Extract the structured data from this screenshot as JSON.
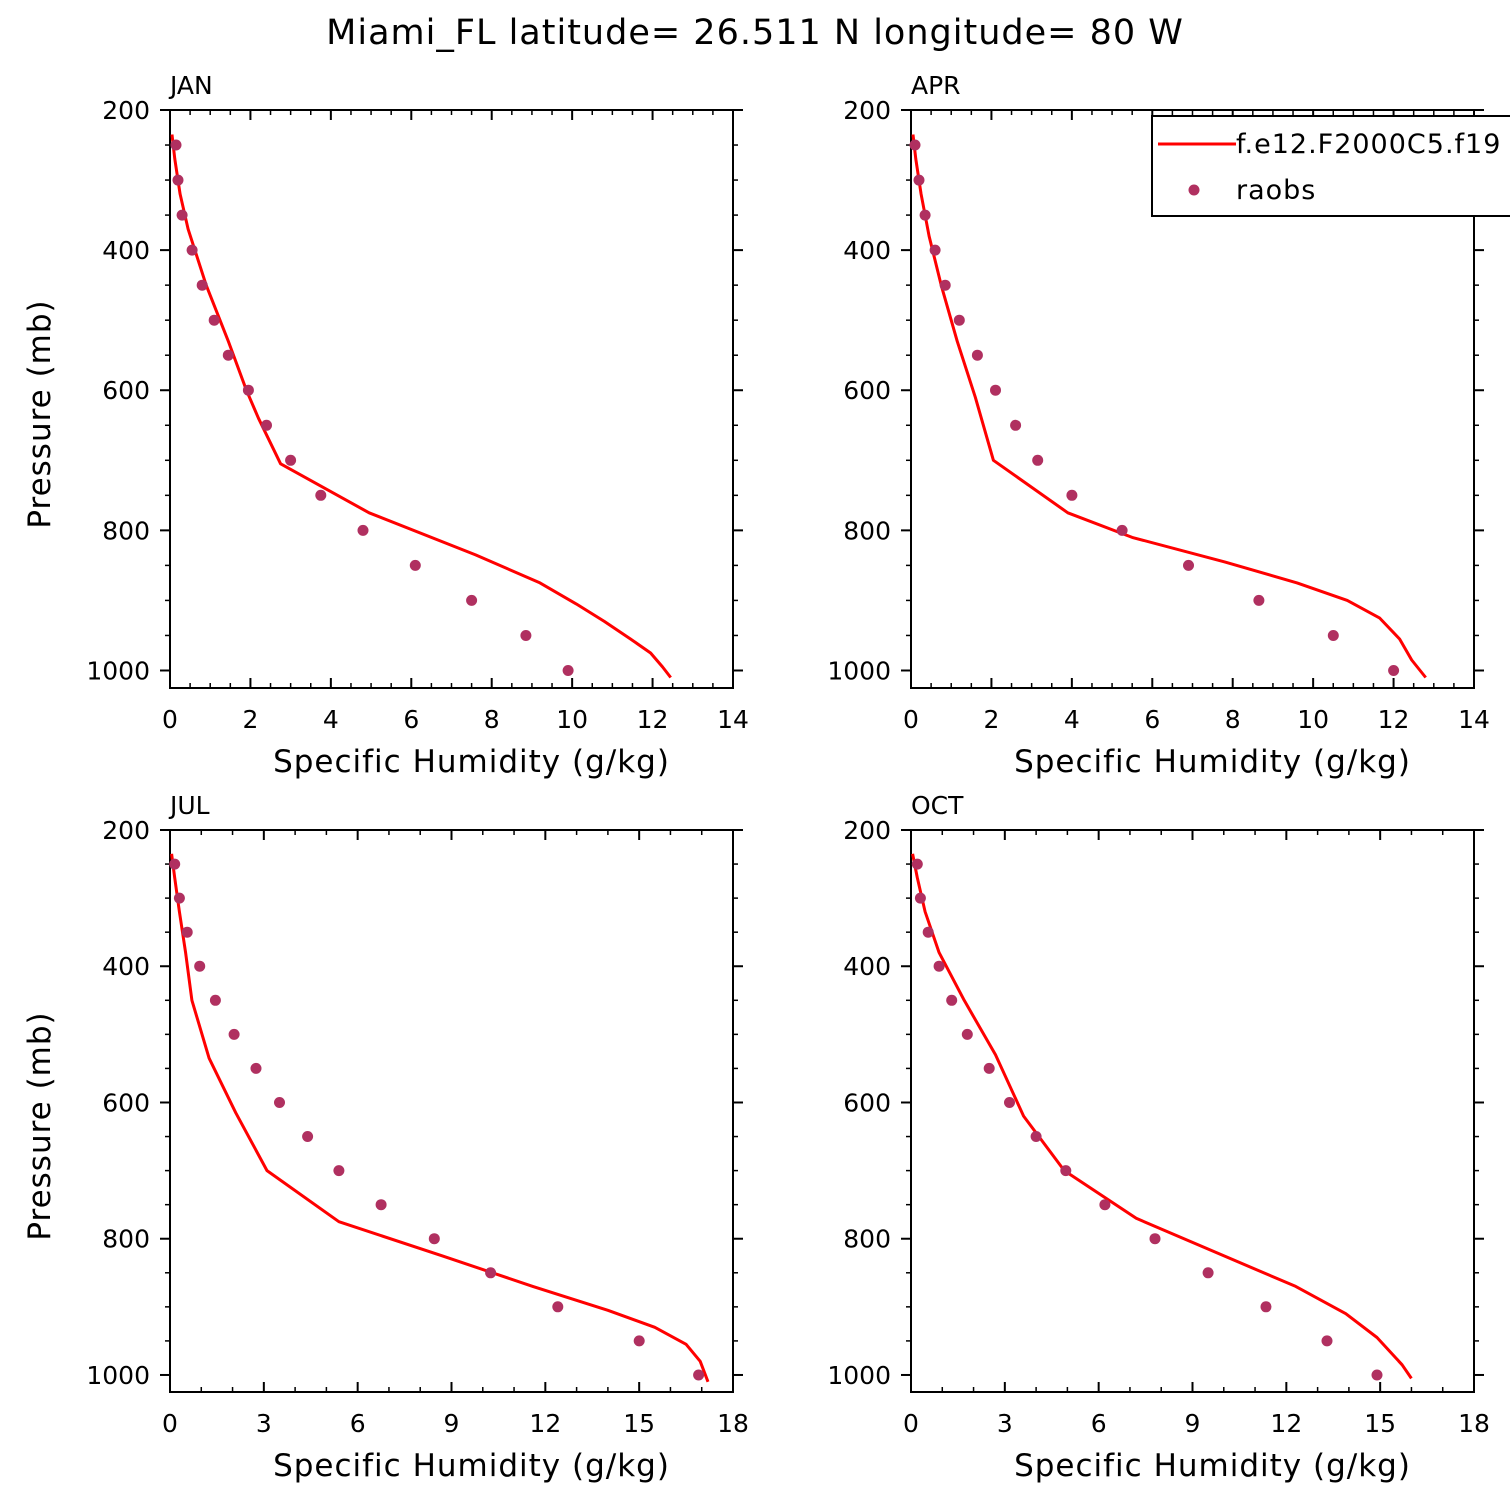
{
  "page_title": "Miami_FL  latitude= 26.511 N longitude= 80 W",
  "legend": {
    "model_label": "f.e12.F2000C5.f19",
    "obs_label": "raobs"
  },
  "colors": {
    "model_line": "#ff0000",
    "obs_points": "#b03060",
    "axes": "#000000",
    "background": "#ffffff"
  },
  "chart_data": [
    {
      "type": "line",
      "panel": "JAN",
      "title": "JAN",
      "xlabel": "Specific Humidity (g/kg)",
      "ylabel": "Pressure (mb)",
      "xlim": [
        0,
        14
      ],
      "ylim": [
        200,
        1025
      ],
      "y_inverted": true,
      "x_ticks": [
        0,
        2,
        4,
        6,
        8,
        10,
        12,
        14
      ],
      "y_ticks": [
        200,
        400,
        600,
        800,
        1000
      ],
      "series": [
        {
          "name": "f.e12.F2000C5.f19",
          "style": "line",
          "x": [
            0.05,
            0.12,
            0.25,
            0.45,
            0.9,
            1.45,
            1.9,
            2.2,
            2.75,
            4.95,
            7.6,
            9.2,
            10.1,
            10.8,
            11.45,
            11.95,
            12.25,
            12.45
          ],
          "y": [
            235,
            270,
            320,
            370,
            450,
            530,
            600,
            640,
            705,
            775,
            835,
            875,
            905,
            930,
            955,
            975,
            995,
            1010
          ]
        },
        {
          "name": "raobs",
          "style": "scatter",
          "x": [
            0.15,
            0.2,
            0.3,
            0.55,
            0.8,
            1.1,
            1.45,
            1.95,
            2.4,
            3.0,
            3.75,
            4.8,
            6.1,
            7.5,
            8.85,
            9.9
          ],
          "y": [
            250,
            300,
            350,
            400,
            450,
            500,
            550,
            600,
            650,
            700,
            750,
            800,
            850,
            900,
            950,
            1000
          ]
        }
      ]
    },
    {
      "type": "line",
      "panel": "APR",
      "title": "APR",
      "xlabel": "Specific Humidity (g/kg)",
      "ylabel": "",
      "xlim": [
        0,
        14
      ],
      "ylim": [
        200,
        1025
      ],
      "y_inverted": true,
      "x_ticks": [
        0,
        2,
        4,
        6,
        8,
        10,
        12,
        14
      ],
      "y_ticks": [
        200,
        400,
        600,
        800,
        1000
      ],
      "series": [
        {
          "name": "f.e12.F2000C5.f19",
          "style": "line",
          "x": [
            0.05,
            0.12,
            0.25,
            0.45,
            0.75,
            1.15,
            1.6,
            2.05,
            3.9,
            5.5,
            7.8,
            9.6,
            10.85,
            11.65,
            12.15,
            12.45,
            12.8
          ],
          "y": [
            235,
            270,
            320,
            380,
            450,
            530,
            610,
            700,
            775,
            810,
            845,
            875,
            900,
            925,
            955,
            985,
            1010
          ]
        },
        {
          "name": "raobs",
          "style": "scatter",
          "x": [
            0.1,
            0.2,
            0.35,
            0.6,
            0.85,
            1.2,
            1.65,
            2.1,
            2.6,
            3.15,
            4.0,
            5.25,
            6.9,
            8.65,
            10.5,
            12.0
          ],
          "y": [
            250,
            300,
            350,
            400,
            450,
            500,
            550,
            600,
            650,
            700,
            750,
            800,
            850,
            900,
            950,
            1000
          ]
        }
      ]
    },
    {
      "type": "line",
      "panel": "JUL",
      "title": "JUL",
      "xlabel": "Specific Humidity (g/kg)",
      "ylabel": "Pressure (mb)",
      "xlim": [
        0,
        18
      ],
      "ylim": [
        200,
        1025
      ],
      "y_inverted": true,
      "x_ticks": [
        0,
        3,
        6,
        9,
        12,
        15,
        18
      ],
      "y_ticks": [
        200,
        400,
        600,
        800,
        1000
      ],
      "series": [
        {
          "name": "f.e12.F2000C5.f19",
          "style": "line",
          "x": [
            0.05,
            0.15,
            0.3,
            0.5,
            0.7,
            1.25,
            2.1,
            3.1,
            5.4,
            8.7,
            11.6,
            14.0,
            15.5,
            16.5,
            16.95,
            17.2
          ],
          "y": [
            235,
            270,
            320,
            380,
            450,
            535,
            615,
            700,
            775,
            825,
            870,
            905,
            930,
            955,
            980,
            1010
          ]
        },
        {
          "name": "raobs",
          "style": "scatter",
          "x": [
            0.15,
            0.3,
            0.55,
            0.95,
            1.45,
            2.05,
            2.75,
            3.5,
            4.4,
            5.4,
            6.75,
            8.45,
            10.25,
            12.4,
            15.0,
            16.9
          ],
          "y": [
            250,
            300,
            350,
            400,
            450,
            500,
            550,
            600,
            650,
            700,
            750,
            800,
            850,
            900,
            950,
            1000
          ]
        }
      ]
    },
    {
      "type": "line",
      "panel": "OCT",
      "title": "OCT",
      "xlabel": "Specific Humidity (g/kg)",
      "ylabel": "",
      "xlim": [
        0,
        18
      ],
      "ylim": [
        200,
        1025
      ],
      "y_inverted": true,
      "x_ticks": [
        0,
        3,
        6,
        9,
        12,
        15,
        18
      ],
      "y_ticks": [
        200,
        400,
        600,
        800,
        1000
      ],
      "series": [
        {
          "name": "f.e12.F2000C5.f19",
          "style": "line",
          "x": [
            0.05,
            0.2,
            0.45,
            0.9,
            1.7,
            2.7,
            3.6,
            4.9,
            7.2,
            10.0,
            12.3,
            13.9,
            14.9,
            15.7,
            16.0
          ],
          "y": [
            235,
            270,
            320,
            380,
            450,
            530,
            620,
            700,
            770,
            825,
            870,
            910,
            945,
            985,
            1005
          ]
        },
        {
          "name": "raobs",
          "style": "scatter",
          "x": [
            0.2,
            0.3,
            0.55,
            0.9,
            1.3,
            1.8,
            2.5,
            3.15,
            4.0,
            4.95,
            6.2,
            7.8,
            9.5,
            11.35,
            13.3,
            14.9
          ],
          "y": [
            250,
            300,
            350,
            400,
            450,
            500,
            550,
            600,
            650,
            700,
            750,
            800,
            850,
            900,
            950,
            1000
          ]
        }
      ]
    }
  ]
}
